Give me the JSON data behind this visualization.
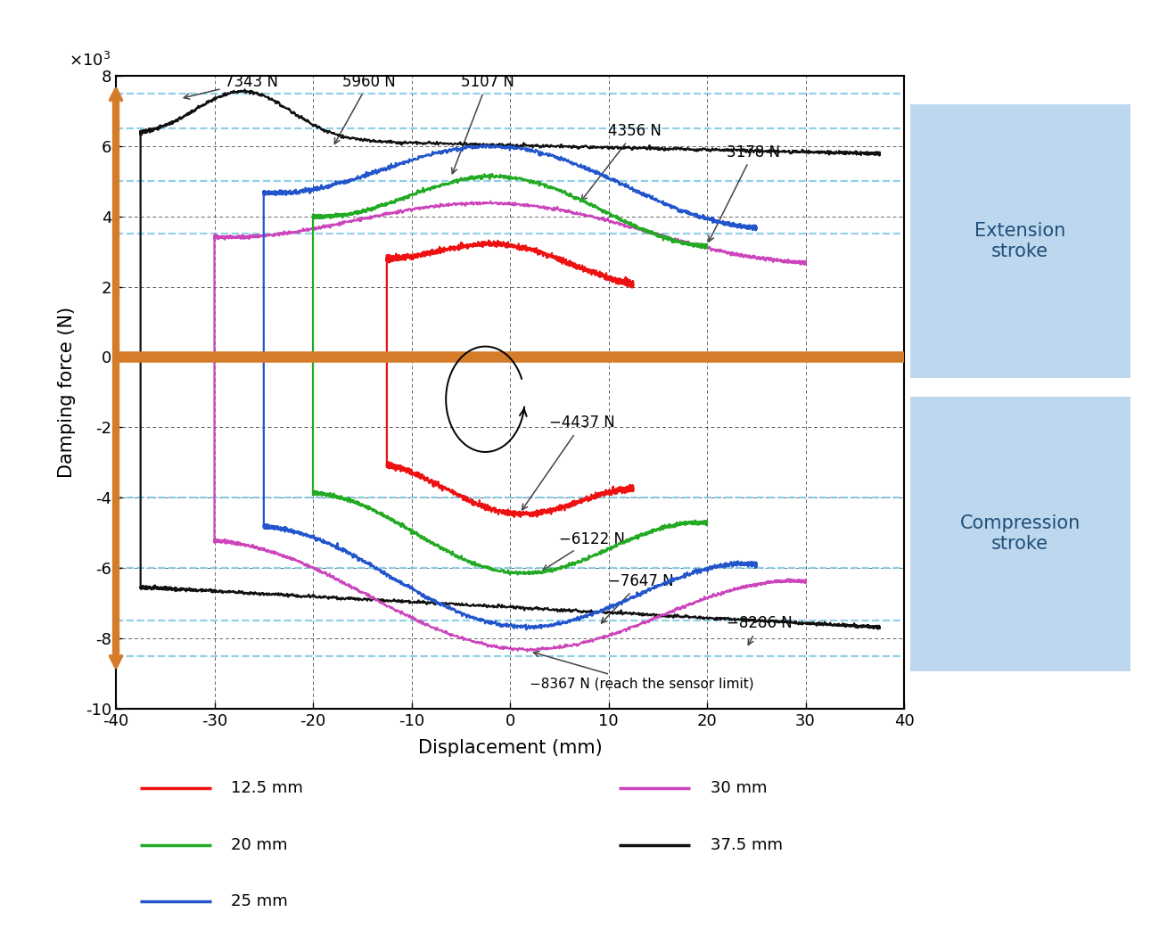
{
  "xlabel": "Displacement (mm)",
  "ylabel": "Damping force (N)",
  "xlim": [
    -40,
    40
  ],
  "ylim": [
    -10000,
    8000
  ],
  "xticks": [
    -40,
    -30,
    -20,
    -10,
    0,
    10,
    20,
    30,
    40
  ],
  "yticks": [
    -10000,
    -8000,
    -6000,
    -4000,
    -2000,
    0,
    2000,
    4000,
    6000,
    8000
  ],
  "ytick_labels": [
    "-10",
    "-8",
    "-6",
    "-4",
    "-2",
    "0",
    "2",
    "4",
    "6",
    "8"
  ],
  "dashed_hlines": [
    7500,
    6500,
    5000,
    3500,
    -4000,
    -6000,
    -7500,
    -8500
  ],
  "orange_color": "#D47C2A",
  "dashed_line_color": "#7EC8E3",
  "box_color": "#BDD7EE",
  "box_text_color": "#1F4E79",
  "legend_entries": [
    {
      "label": "12.5 mm",
      "color": "#EE1111"
    },
    {
      "label": "20 mm",
      "color": "#22AA22"
    },
    {
      "label": "25 mm",
      "color": "#2255CC"
    },
    {
      "label": "30 mm",
      "color": "#CC44BB"
    },
    {
      "label": "37.5 mm",
      "color": "#111111"
    }
  ],
  "background_color": "#FFFFFF"
}
